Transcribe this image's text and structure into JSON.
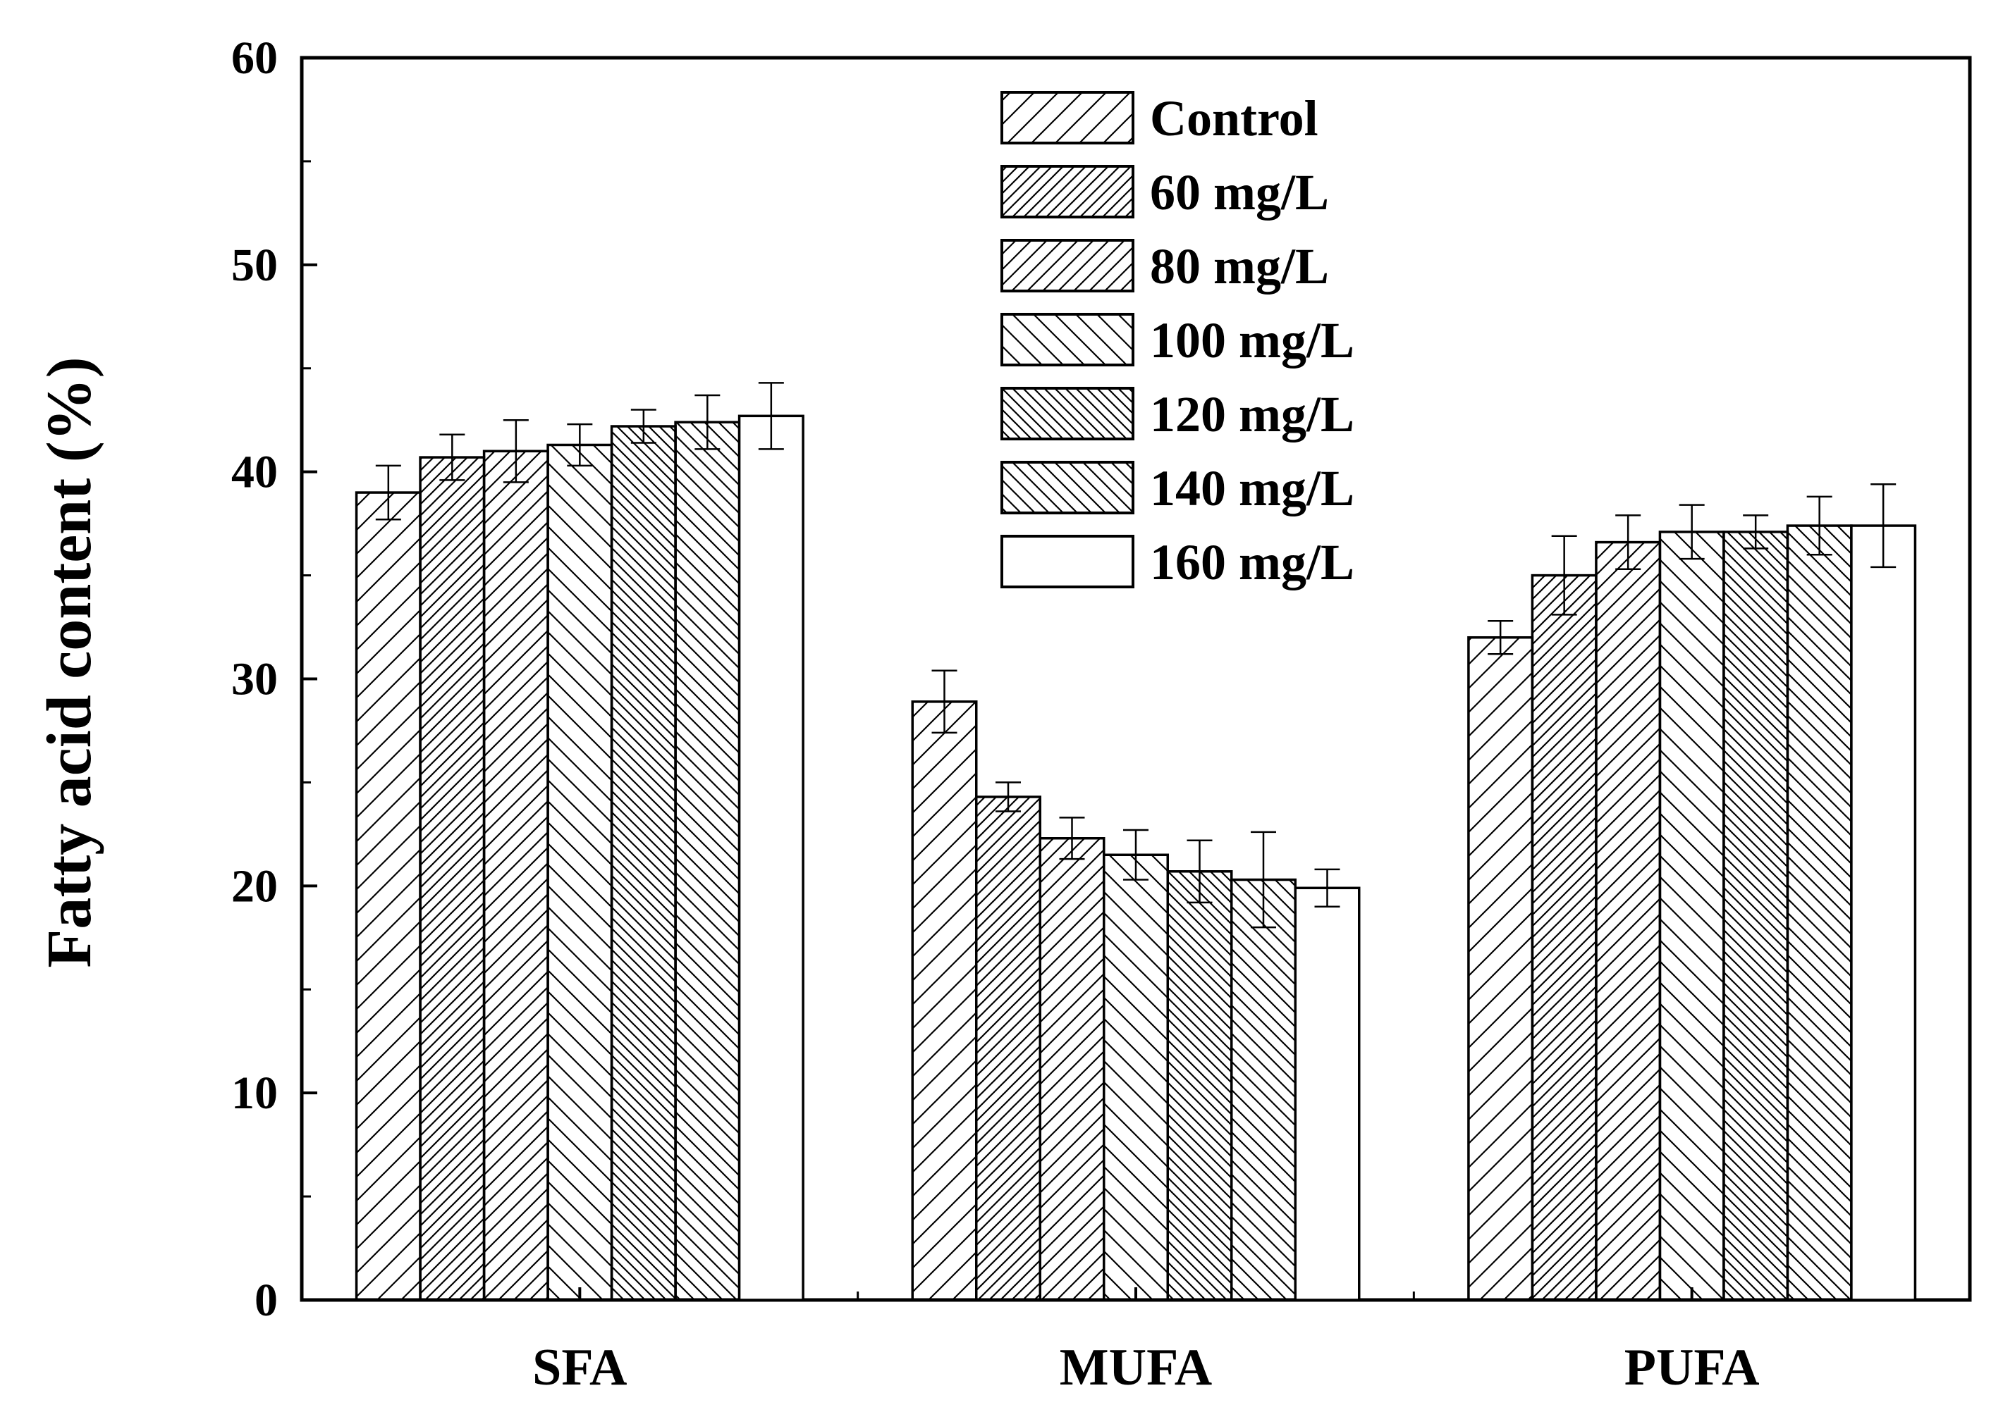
{
  "chart_data": {
    "type": "bar",
    "title": "",
    "xlabel": "",
    "ylabel": "Fatty acid content (%)",
    "ylim": [
      0,
      60
    ],
    "yticks": [
      0,
      10,
      20,
      30,
      40,
      50,
      60
    ],
    "grid": false,
    "legend_position": "top-center",
    "categories": [
      "SFA",
      "MUFA",
      "PUFA"
    ],
    "series": [
      {
        "name": "Control",
        "pattern": "diag-sparse",
        "values": [
          39.0,
          28.9,
          32.0
        ],
        "errors": [
          1.3,
          1.5,
          0.8
        ]
      },
      {
        "name": "60 mg/L",
        "pattern": "diag-dense",
        "values": [
          40.7,
          24.3,
          35.0
        ],
        "errors": [
          1.1,
          0.7,
          1.9
        ]
      },
      {
        "name": "80 mg/L",
        "pattern": "diag-medium",
        "values": [
          41.0,
          22.3,
          36.6
        ],
        "errors": [
          1.5,
          1.0,
          1.3
        ]
      },
      {
        "name": "100 mg/L",
        "pattern": "back-sparse",
        "values": [
          41.3,
          21.5,
          37.1
        ],
        "errors": [
          1.0,
          1.2,
          1.3
        ]
      },
      {
        "name": "120 mg/L",
        "pattern": "back-dense",
        "values": [
          42.2,
          20.7,
          37.1
        ],
        "errors": [
          0.8,
          1.5,
          0.8
        ]
      },
      {
        "name": "140 mg/L",
        "pattern": "back-medium",
        "values": [
          42.4,
          20.3,
          37.4
        ],
        "errors": [
          1.3,
          2.3,
          1.4
        ]
      },
      {
        "name": "160 mg/L",
        "pattern": "none",
        "values": [
          42.7,
          19.9,
          37.4
        ],
        "errors": [
          1.6,
          0.9,
          2.0
        ]
      }
    ]
  }
}
